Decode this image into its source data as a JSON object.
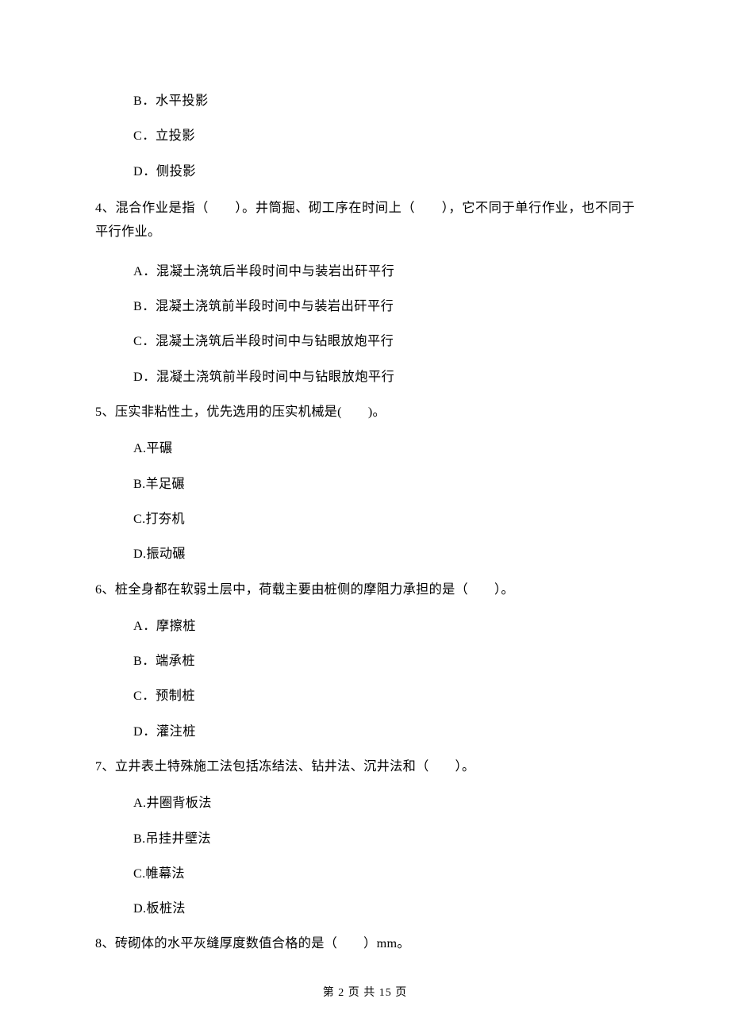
{
  "q3": {
    "B": "B．水平投影",
    "C": "C．立投影",
    "D": "D．侧投影"
  },
  "q4": {
    "stem": "4、混合作业是指（　　）。井筒掘、砌工序在时间上（　　），它不同于单行作业，也不同于平行作业。",
    "A": "A．混凝土浇筑后半段时间中与装岩出矸平行",
    "B": "B．混凝土浇筑前半段时间中与装岩出矸平行",
    "C": "C．混凝土浇筑后半段时间中与钻眼放炮平行",
    "D": "D．混凝土浇筑前半段时间中与钻眼放炮平行"
  },
  "q5": {
    "stem": "5、压实非粘性土，优先选用的压实机械是(　　)。",
    "A": "A.平碾",
    "B": "B.羊足碾",
    "C": "C.打夯机",
    "D": "D.振动碾"
  },
  "q6": {
    "stem": "6、桩全身都在软弱土层中，荷载主要由桩侧的摩阻力承担的是（　　）。",
    "A": "A．摩擦桩",
    "B": "B．端承桩",
    "C": "C．预制桩",
    "D": "D．灌注桩"
  },
  "q7": {
    "stem": "7、立井表土特殊施工法包括冻结法、钻井法、沉井法和（　　）。",
    "A": "A.井圈背板法",
    "B": "B.吊挂井壁法",
    "C": "C.帷幕法",
    "D": "D.板桩法"
  },
  "q8": {
    "stem": "8、砖砌体的水平灰缝厚度数值合格的是（　　）mm。"
  },
  "footer": "第 2 页 共 15 页"
}
